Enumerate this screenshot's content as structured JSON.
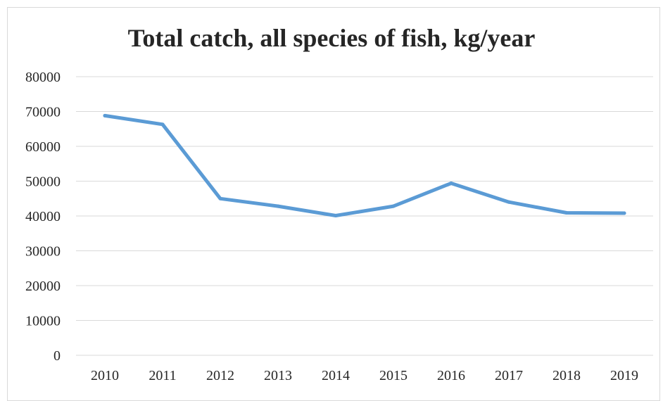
{
  "chart_data": {
    "type": "line",
    "title": "Total catch, all species of fish, kg/year",
    "xlabel": "",
    "ylabel": "",
    "categories": [
      "2010",
      "2011",
      "2012",
      "2013",
      "2014",
      "2015",
      "2016",
      "2017",
      "2018",
      "2019"
    ],
    "series": [
      {
        "values": [
          68800,
          66300,
          45000,
          42800,
          40100,
          42800,
          49400,
          44000,
          40900,
          40800
        ]
      }
    ],
    "ylim": [
      0,
      80000
    ],
    "yticks": [
      "0",
      "10000",
      "20000",
      "30000",
      "40000",
      "50000",
      "60000",
      "70000",
      "80000"
    ],
    "grid": true,
    "legend": "none",
    "colors": {
      "line": "#5b9bd5",
      "grid": "#d9d9d9",
      "text": "#262626"
    }
  }
}
